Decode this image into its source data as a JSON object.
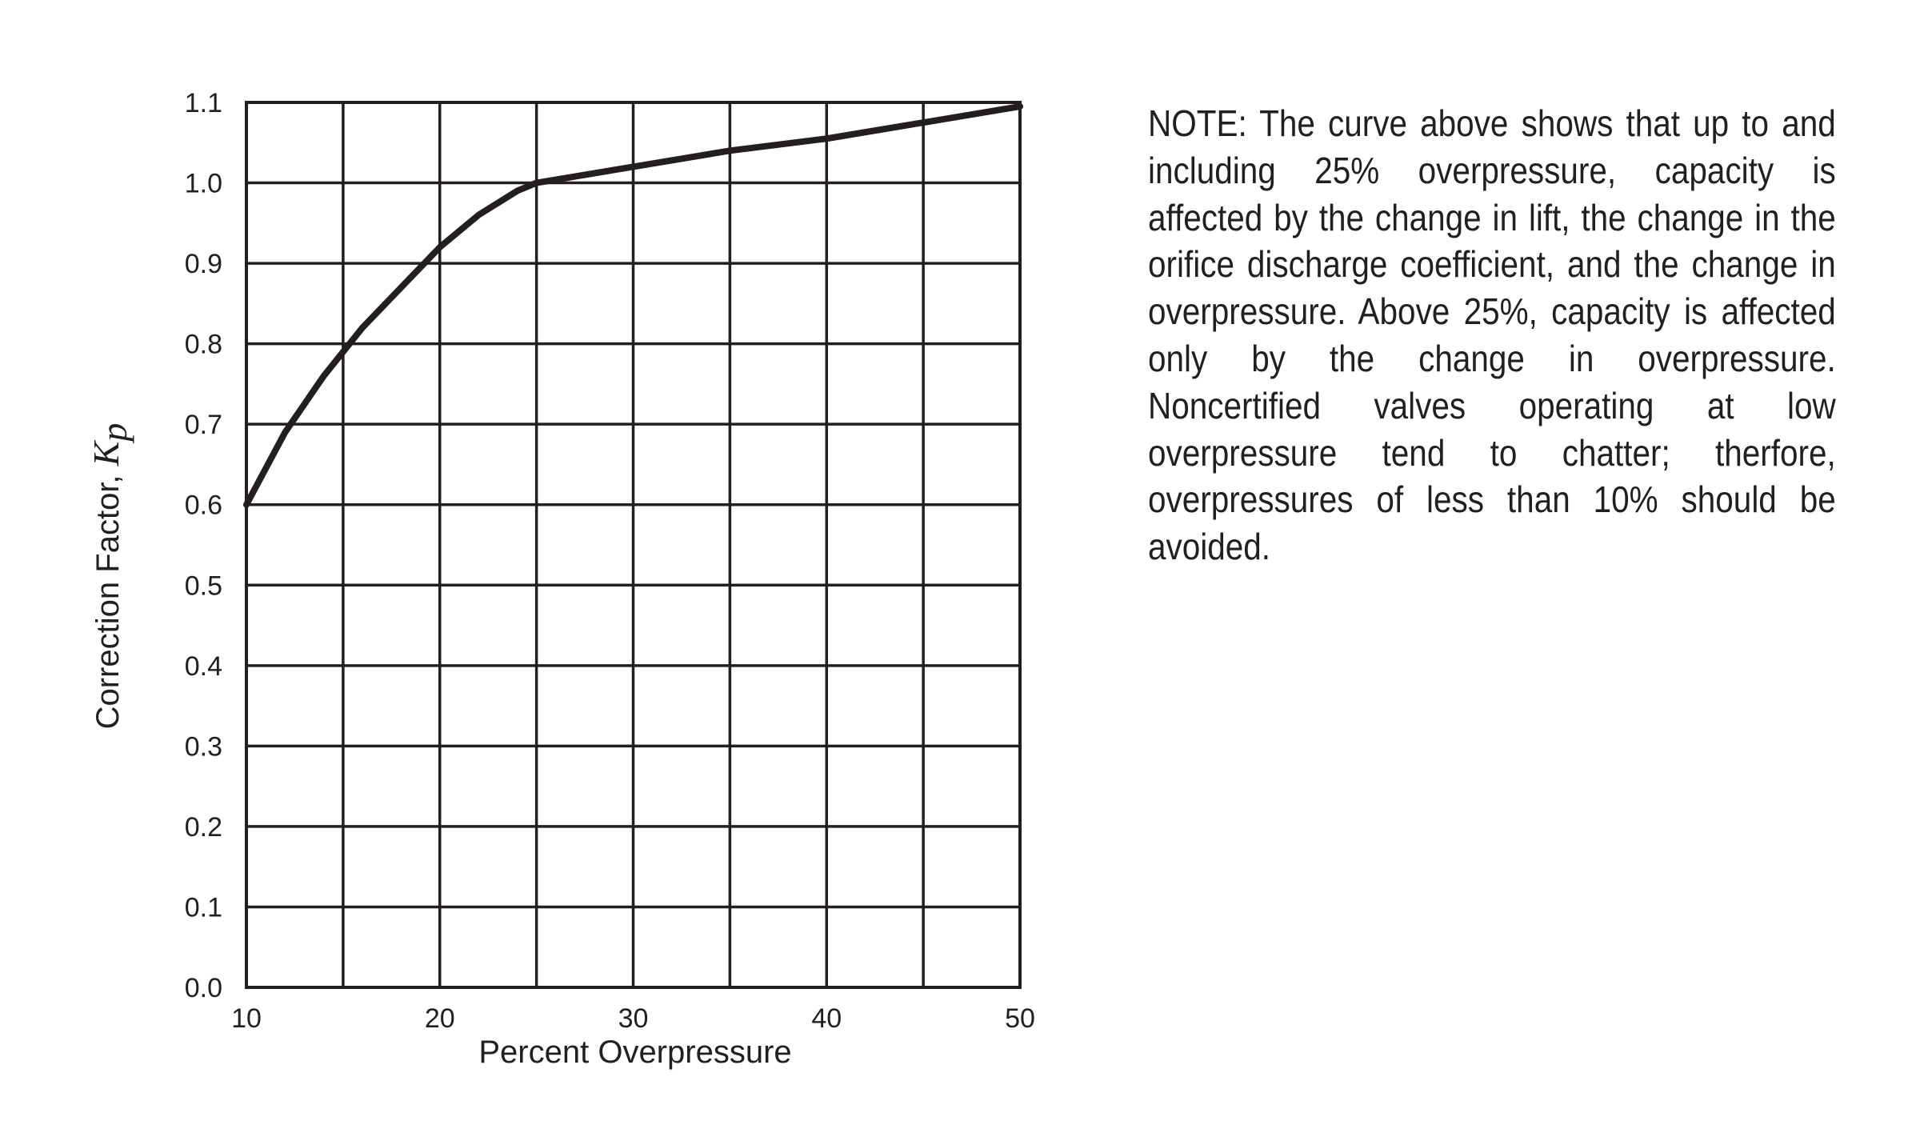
{
  "chart_data": {
    "type": "line",
    "xlabel": "Percent Overpressure",
    "ylabel": "Correction Factor, ",
    "ylabel_symbol": "K",
    "ylabel_subscript": "p",
    "xlim": [
      10,
      50
    ],
    "ylim": [
      0.0,
      1.1
    ],
    "x_ticks": [
      10,
      20,
      30,
      40,
      50
    ],
    "y_ticks": [
      "0.0",
      "0.1",
      "0.2",
      "0.3",
      "0.4",
      "0.5",
      "0.6",
      "0.7",
      "0.8",
      "0.9",
      "1.0",
      "1.1"
    ],
    "grid": true,
    "legend": "none",
    "series": [
      {
        "x": [
          10,
          12,
          14,
          15,
          16,
          18,
          20,
          22,
          24,
          25,
          30,
          35,
          40,
          45,
          50
        ],
        "values": [
          0.6,
          0.69,
          0.76,
          0.79,
          0.82,
          0.87,
          0.92,
          0.96,
          0.99,
          1.0,
          1.02,
          1.04,
          1.055,
          1.075,
          1.095
        ],
        "color": "#231f20"
      }
    ]
  },
  "note": {
    "text": "NOTE: The curve above shows that up to and including 25% overpressure, capacity is affected by the change in lift, the change in the orifice discharge coefficient, and the change in overpressure. Above 25%, capacity is affected only by the change in overpressure. Noncertified valves operating at low overpressure tend to chatter; therfore, overpressures of less than 10% should be avoided."
  },
  "colors": {
    "ink": "#231f20",
    "background": "#ffffff"
  }
}
